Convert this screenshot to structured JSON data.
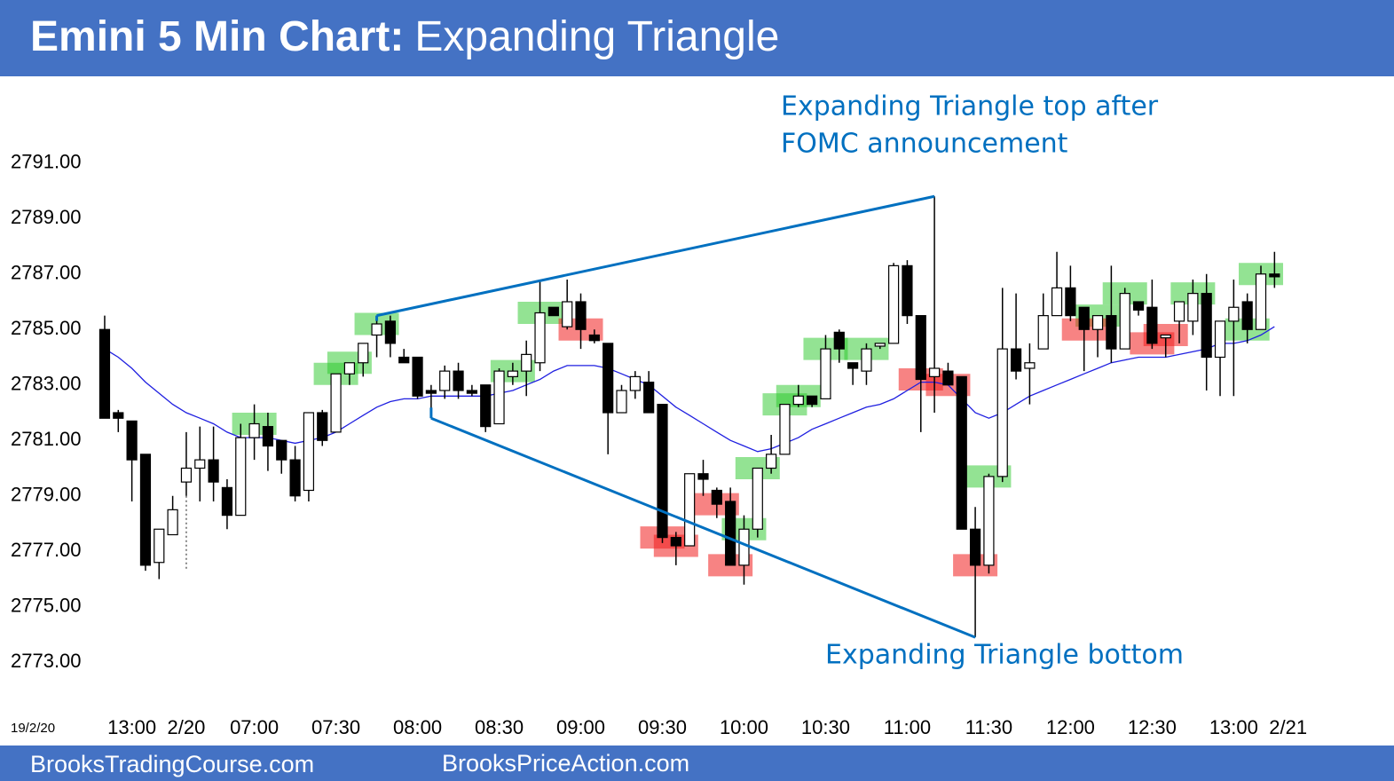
{
  "chart_data": {
    "type": "candlestick",
    "title": {
      "lead": "Emini 5 Min Chart:",
      "rest": "Expanding Triangle"
    },
    "date_label": "19/2/20",
    "footer": [
      "BrooksTradingCourse.com",
      "BrooksPriceAction.com"
    ],
    "annotations": [
      {
        "lines": [
          "Expanding Triangle top after",
          "FOMC announcement"
        ],
        "color": "#0070c0"
      },
      {
        "lines": [
          "Expanding Triangle bottom"
        ],
        "color": "#0070c0"
      }
    ],
    "categories": [
      null,
      null,
      "13:00",
      null,
      null,
      null,
      "2/20",
      null,
      null,
      null,
      null,
      "07:00",
      null,
      null,
      null,
      null,
      null,
      "07:30",
      null,
      null,
      null,
      null,
      null,
      "08:00",
      null,
      null,
      null,
      null,
      null,
      "08:30",
      null,
      null,
      null,
      null,
      null,
      "09:00",
      null,
      null,
      null,
      null,
      null,
      "09:30",
      null,
      null,
      null,
      null,
      null,
      "10:00",
      null,
      null,
      null,
      null,
      null,
      "10:30",
      null,
      null,
      null,
      null,
      null,
      "11:00",
      null,
      null,
      null,
      null,
      null,
      "11:30",
      null,
      null,
      null,
      null,
      null,
      "12:00",
      null,
      null,
      null,
      null,
      null,
      "12:30",
      null,
      null,
      null,
      null,
      null,
      "13:00",
      null,
      null,
      null,
      "2/21"
    ],
    "open": [
      2785.0,
      2782.0,
      2781.7,
      2780.5,
      2776.6,
      2777.6,
      2779.5,
      2780.0,
      2780.3,
      2779.3,
      2778.3,
      2781.1,
      2781.5,
      2781.0,
      2780.3,
      2779.2,
      2782.0,
      2781.3,
      2783.4,
      2783.8,
      2784.8,
      2785.3,
      2784.0,
      2784.0,
      2782.8,
      2782.8,
      2783.5,
      2782.8,
      2783.0,
      2781.6,
      2783.3,
      2783.5,
      2783.8,
      2785.8,
      2785.1,
      2786.0,
      2784.8,
      2784.5,
      2782.0,
      2782.8,
      2783.1,
      2782.3,
      2777.5,
      2777.2,
      2779.8,
      2779.2,
      2778.8,
      2776.5,
      2777.8,
      2780.0,
      2780.5,
      2782.3,
      2782.6,
      2782.5,
      2784.9,
      2783.8,
      2783.5,
      2784.4,
      2784.5,
      2787.3,
      2785.5,
      2783.3,
      2783.5,
      2783.3,
      2777.8,
      2776.5,
      2779.7,
      2784.3,
      2783.6,
      2784.3,
      2785.5,
      2786.5,
      2785.8,
      2785.0,
      2785.5,
      2784.3,
      2786.0,
      2785.8,
      2784.7,
      2785.3,
      2785.3,
      2786.3,
      2784.0,
      2785.3,
      2786.0,
      2785.0,
      2787.0,
      null
    ],
    "high": [
      2785.5,
      2782.1,
      2781.7,
      2780.5,
      2777.8,
      2779.0,
      2781.3,
      2781.5,
      2781.5,
      2779.6,
      2781.6,
      2782.3,
      2782.0,
      2781.0,
      2780.8,
      2782.0,
      2782.1,
      2783.4,
      2783.8,
      2784.5,
      2785.5,
      2785.5,
      2784.3,
      2784.0,
      2783.0,
      2783.7,
      2783.8,
      2783.0,
      2783.0,
      2783.6,
      2783.8,
      2784.6,
      2786.8,
      2785.8,
      2786.8,
      2786.3,
      2785.0,
      2784.5,
      2783.0,
      2783.5,
      2783.5,
      2782.3,
      2777.7,
      2779.8,
      2780.3,
      2779.3,
      2779.3,
      2778.3,
      2780.0,
      2781.2,
      2782.3,
      2783.0,
      2782.6,
      2784.8,
      2785.0,
      2783.8,
      2784.5,
      2784.5,
      2787.4,
      2787.5,
      2785.5,
      2789.8,
      2783.8,
      2783.3,
      2778.6,
      2779.8,
      2786.5,
      2786.3,
      2784.5,
      2786.3,
      2787.8,
      2787.3,
      2785.8,
      2785.5,
      2787.3,
      2786.5,
      2786.0,
      2786.8,
      2784.8,
      2786.0,
      2786.8,
      2787.0,
      2785.3,
      2786.8,
      2786.3,
      2787.3,
      2787.8,
      null
    ],
    "low": [
      2781.8,
      2781.3,
      2778.8,
      2776.3,
      2776.0,
      2777.6,
      2779.0,
      2778.8,
      2778.8,
      2777.8,
      2778.3,
      2780.3,
      2779.9,
      2779.8,
      2778.8,
      2778.8,
      2780.8,
      2781.3,
      2783.0,
      2783.3,
      2784.0,
      2784.0,
      2783.8,
      2782.5,
      2781.8,
      2782.5,
      2782.5,
      2782.6,
      2781.3,
      2781.6,
      2783.0,
      2782.6,
      2783.5,
      2785.5,
      2785.0,
      2784.3,
      2784.5,
      2780.5,
      2782.0,
      2782.5,
      2782.0,
      2777.3,
      2776.5,
      2777.2,
      2779.0,
      2778.2,
      2776.5,
      2775.8,
      2777.5,
      2779.8,
      2780.5,
      2782.2,
      2782.2,
      2782.5,
      2783.8,
      2783.0,
      2783.0,
      2784.3,
      2784.5,
      2785.2,
      2781.3,
      2782.0,
      2783.0,
      2777.8,
      2773.9,
      2776.2,
      2779.5,
      2783.2,
      2782.3,
      2784.3,
      2785.5,
      2785.3,
      2783.5,
      2784.0,
      2783.8,
      2784.3,
      2785.5,
      2784.3,
      2784.0,
      2784.5,
      2784.8,
      2782.8,
      2782.6,
      2782.6,
      2784.5,
      2785.0,
      2786.5,
      null
    ],
    "close": [
      2781.8,
      2781.8,
      2780.3,
      2776.5,
      2777.8,
      2778.5,
      2780.0,
      2780.3,
      2779.5,
      2778.3,
      2781.1,
      2781.6,
      2780.8,
      2780.3,
      2779.0,
      2782.0,
      2781.0,
      2783.4,
      2783.8,
      2784.5,
      2785.2,
      2784.5,
      2783.8,
      2782.6,
      2782.7,
      2783.5,
      2782.8,
      2782.7,
      2781.5,
      2783.5,
      2783.5,
      2784.1,
      2785.6,
      2785.5,
      2786.0,
      2785.0,
      2784.6,
      2782.0,
      2782.8,
      2783.3,
      2782.0,
      2777.5,
      2777.2,
      2779.8,
      2779.6,
      2778.7,
      2776.5,
      2777.8,
      2780.0,
      2780.5,
      2782.3,
      2782.6,
      2782.3,
      2784.3,
      2784.3,
      2783.6,
      2784.3,
      2784.5,
      2787.3,
      2785.5,
      2783.2,
      2783.6,
      2783.0,
      2777.8,
      2776.5,
      2779.7,
      2784.3,
      2783.5,
      2783.8,
      2785.5,
      2786.5,
      2785.5,
      2785.0,
      2785.5,
      2784.3,
      2786.3,
      2785.7,
      2784.5,
      2784.8,
      2786.0,
      2786.3,
      2784.0,
      2785.3,
      2785.8,
      2785.0,
      2787.0,
      2786.9,
      null
    ],
    "moving_average": {
      "color": "#1f1fe0",
      "values": [
        2784.3,
        2784.0,
        2783.6,
        2783.1,
        2782.7,
        2782.3,
        2782.0,
        2781.8,
        2781.6,
        2781.3,
        2781.1,
        2781.1,
        2781.1,
        2781.0,
        2780.9,
        2781.0,
        2781.1,
        2781.3,
        2781.6,
        2781.9,
        2782.2,
        2782.4,
        2782.5,
        2782.5,
        2782.6,
        2782.6,
        2782.6,
        2782.6,
        2782.6,
        2782.7,
        2782.8,
        2783.0,
        2783.2,
        2783.5,
        2783.7,
        2783.7,
        2783.7,
        2783.6,
        2783.4,
        2783.2,
        2783.0,
        2782.6,
        2782.2,
        2781.9,
        2781.6,
        2781.3,
        2781.0,
        2780.8,
        2780.6,
        2780.7,
        2780.9,
        2781.1,
        2781.4,
        2781.6,
        2781.8,
        2782.0,
        2782.2,
        2782.3,
        2782.5,
        2782.8,
        2783.1,
        2783.1,
        2783.0,
        2782.5,
        2782.0,
        2781.8,
        2782.0,
        2782.3,
        2782.6,
        2782.8,
        2783.0,
        2783.2,
        2783.4,
        2783.6,
        2783.8,
        2783.9,
        2784.0,
        2784.0,
        2784.0,
        2784.1,
        2784.2,
        2784.3,
        2784.5,
        2784.5,
        2784.6,
        2784.8,
        2785.1,
        null
      ]
    },
    "ylim": [
      2771.6,
      2794.0
    ],
    "yticks": [
      {
        "value": 2773,
        "label": "2773.00"
      },
      {
        "value": 2775,
        "label": "2775.00"
      },
      {
        "value": 2777,
        "label": "2777.00"
      },
      {
        "value": 2779,
        "label": "2779.00"
      },
      {
        "value": 2781,
        "label": "2781.00"
      },
      {
        "value": 2783,
        "label": "2783.00"
      },
      {
        "value": 2785,
        "label": "2785.00"
      },
      {
        "value": 2787,
        "label": "2787.00"
      },
      {
        "value": 2789,
        "label": "2789.00"
      },
      {
        "value": 2791,
        "label": "2791.00"
      }
    ],
    "grid": false,
    "up_color": "#ffffff",
    "down_color": "#000000",
    "header_color": "#4472c4"
  }
}
